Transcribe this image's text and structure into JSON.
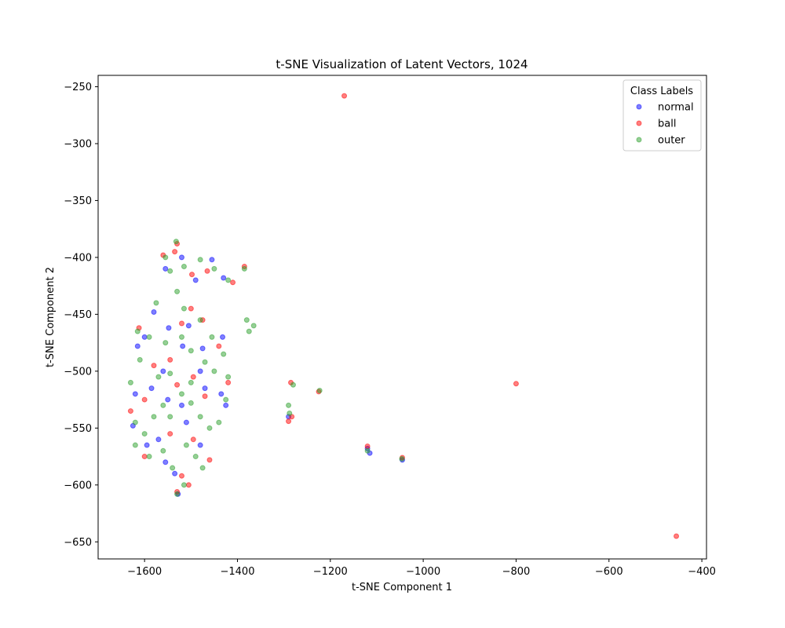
{
  "chart_data": {
    "type": "scatter",
    "title": "t-SNE Visualization of Latent Vectors, 1024",
    "xlabel": "t-SNE Component 1",
    "ylabel": "t-SNE Component 2",
    "xlim": [
      -1700,
      -390
    ],
    "ylim": [
      -665,
      -240
    ],
    "x_ticks": [
      -1600,
      -1400,
      -1200,
      -1000,
      -800,
      -600,
      -400
    ],
    "y_ticks": [
      -250,
      -300,
      -350,
      -400,
      -450,
      -500,
      -550,
      -600,
      -650
    ],
    "x_tick_labels": [
      "−1600",
      "−1400",
      "−1200",
      "−1000",
      "−800",
      "−600",
      "−400"
    ],
    "y_tick_labels": [
      "−250",
      "−300",
      "−350",
      "−400",
      "−450",
      "−500",
      "−550",
      "−600",
      "−650"
    ],
    "grid": false,
    "legend": {
      "title": "Class Labels",
      "placement": "top-right"
    },
    "series": [
      {
        "name": "normal",
        "color": "#0000ff",
        "points": [
          [
            -1555,
            -410
          ],
          [
            -1520,
            -400
          ],
          [
            -1490,
            -420
          ],
          [
            -1455,
            -402
          ],
          [
            -1430,
            -418
          ],
          [
            -1580,
            -448
          ],
          [
            -1548,
            -462
          ],
          [
            -1505,
            -460
          ],
          [
            -1475,
            -480
          ],
          [
            -1432,
            -470
          ],
          [
            -1615,
            -478
          ],
          [
            -1600,
            -470
          ],
          [
            -1560,
            -500
          ],
          [
            -1518,
            -478
          ],
          [
            -1480,
            -500
          ],
          [
            -1620,
            -520
          ],
          [
            -1585,
            -515
          ],
          [
            -1550,
            -525
          ],
          [
            -1520,
            -530
          ],
          [
            -1470,
            -515
          ],
          [
            -1435,
            -520
          ],
          [
            -1425,
            -530
          ],
          [
            -1625,
            -548
          ],
          [
            -1595,
            -565
          ],
          [
            -1570,
            -560
          ],
          [
            -1555,
            -580
          ],
          [
            -1535,
            -590
          ],
          [
            -1528,
            -608
          ],
          [
            -1510,
            -545
          ],
          [
            -1480,
            -565
          ],
          [
            -1120,
            -568
          ],
          [
            -1115,
            -572
          ],
          [
            -1045,
            -578
          ],
          [
            -1290,
            -540
          ]
        ]
      },
      {
        "name": "ball",
        "color": "#ff0000",
        "points": [
          [
            -1170,
            -258
          ],
          [
            -800,
            -511
          ],
          [
            -455,
            -645
          ],
          [
            -1530,
            -388
          ],
          [
            -1535,
            -395
          ],
          [
            -1560,
            -398
          ],
          [
            -1498,
            -415
          ],
          [
            -1465,
            -412
          ],
          [
            -1410,
            -422
          ],
          [
            -1385,
            -408
          ],
          [
            -1612,
            -462
          ],
          [
            -1520,
            -458
          ],
          [
            -1475,
            -455
          ],
          [
            -1500,
            -445
          ],
          [
            -1440,
            -478
          ],
          [
            -1580,
            -495
          ],
          [
            -1545,
            -490
          ],
          [
            -1495,
            -505
          ],
          [
            -1600,
            -525
          ],
          [
            -1530,
            -512
          ],
          [
            -1470,
            -522
          ],
          [
            -1420,
            -510
          ],
          [
            -1630,
            -535
          ],
          [
            -1600,
            -575
          ],
          [
            -1545,
            -555
          ],
          [
            -1495,
            -560
          ],
          [
            -1460,
            -578
          ],
          [
            -1520,
            -592
          ],
          [
            -1505,
            -600
          ],
          [
            -1530,
            -606
          ],
          [
            -1285,
            -510
          ],
          [
            -1283,
            -540
          ],
          [
            -1290,
            -544
          ],
          [
            -1225,
            -518
          ],
          [
            -1120,
            -566
          ],
          [
            -1045,
            -576
          ]
        ]
      },
      {
        "name": "outer",
        "color": "#2ca02c",
        "points": [
          [
            -1532,
            -386
          ],
          [
            -1555,
            -400
          ],
          [
            -1545,
            -412
          ],
          [
            -1515,
            -408
          ],
          [
            -1480,
            -402
          ],
          [
            -1450,
            -410
          ],
          [
            -1420,
            -420
          ],
          [
            -1385,
            -410
          ],
          [
            -1575,
            -440
          ],
          [
            -1530,
            -430
          ],
          [
            -1515,
            -445
          ],
          [
            -1480,
            -455
          ],
          [
            -1455,
            -470
          ],
          [
            -1380,
            -455
          ],
          [
            -1375,
            -465
          ],
          [
            -1365,
            -460
          ],
          [
            -1615,
            -465
          ],
          [
            -1590,
            -470
          ],
          [
            -1555,
            -475
          ],
          [
            -1520,
            -470
          ],
          [
            -1500,
            -482
          ],
          [
            -1470,
            -492
          ],
          [
            -1610,
            -490
          ],
          [
            -1570,
            -505
          ],
          [
            -1545,
            -502
          ],
          [
            -1500,
            -510
          ],
          [
            -1450,
            -500
          ],
          [
            -1420,
            -505
          ],
          [
            -1630,
            -510
          ],
          [
            -1620,
            -545
          ],
          [
            -1600,
            -555
          ],
          [
            -1580,
            -540
          ],
          [
            -1560,
            -530
          ],
          [
            -1545,
            -540
          ],
          [
            -1520,
            -520
          ],
          [
            -1500,
            -528
          ],
          [
            -1480,
            -540
          ],
          [
            -1460,
            -550
          ],
          [
            -1440,
            -545
          ],
          [
            -1620,
            -565
          ],
          [
            -1590,
            -575
          ],
          [
            -1560,
            -570
          ],
          [
            -1540,
            -585
          ],
          [
            -1510,
            -565
          ],
          [
            -1490,
            -575
          ],
          [
            -1475,
            -585
          ],
          [
            -1515,
            -600
          ],
          [
            -1530,
            -608
          ],
          [
            -1430,
            -485
          ],
          [
            -1425,
            -525
          ],
          [
            -1290,
            -530
          ],
          [
            -1288,
            -537
          ],
          [
            -1280,
            -512
          ],
          [
            -1223,
            -517
          ],
          [
            -1120,
            -570
          ],
          [
            -1046,
            -577
          ]
        ]
      }
    ]
  }
}
